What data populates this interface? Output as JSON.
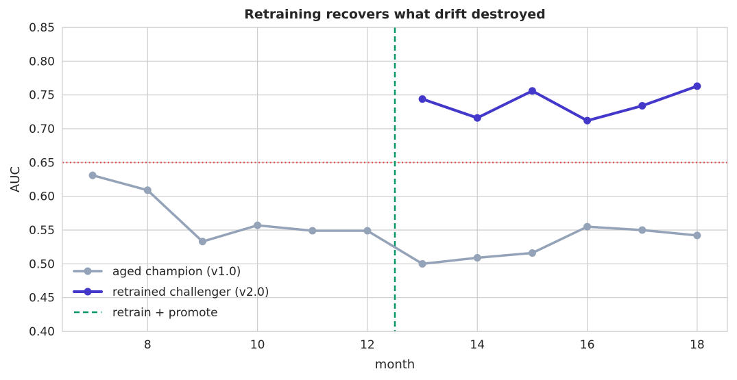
{
  "chart_data": {
    "type": "line",
    "title": "Retraining recovers what drift destroyed",
    "xlabel": "month",
    "ylabel": "AUC",
    "xlim": [
      6.45,
      18.55
    ],
    "ylim": [
      0.4,
      0.85
    ],
    "xticks": [
      8,
      10,
      12,
      14,
      16,
      18
    ],
    "yticks": [
      0.4,
      0.45,
      0.5,
      0.55,
      0.6,
      0.65,
      0.7,
      0.75,
      0.8,
      0.85
    ],
    "ytick_labels": [
      "0.40",
      "0.45",
      "0.50",
      "0.55",
      "0.60",
      "0.65",
      "0.70",
      "0.75",
      "0.80",
      "0.85"
    ],
    "grid": true,
    "legend_position": "lower-left",
    "series": [
      {
        "name": "aged champion (v1.0)",
        "color": "#94a3b8",
        "x": [
          7,
          8,
          9,
          10,
          11,
          12,
          13,
          14,
          15,
          16,
          17,
          18
        ],
        "y": [
          0.631,
          0.609,
          0.533,
          0.557,
          0.549,
          0.549,
          0.5,
          0.509,
          0.516,
          0.555,
          0.55,
          0.542
        ]
      },
      {
        "name": "retrained challenger (v2.0)",
        "color": "#4338ca",
        "x": [
          13,
          14,
          15,
          16,
          17,
          18
        ],
        "y": [
          0.744,
          0.716,
          0.756,
          0.712,
          0.734,
          0.763
        ]
      }
    ],
    "reference_lines": [
      {
        "orientation": "horizontal",
        "value": 0.65,
        "style": "dotted",
        "color": "#ef4444"
      },
      {
        "orientation": "vertical",
        "value": 12.5,
        "style": "dashed",
        "color": "#059669",
        "name": "retrain + promote"
      }
    ]
  }
}
